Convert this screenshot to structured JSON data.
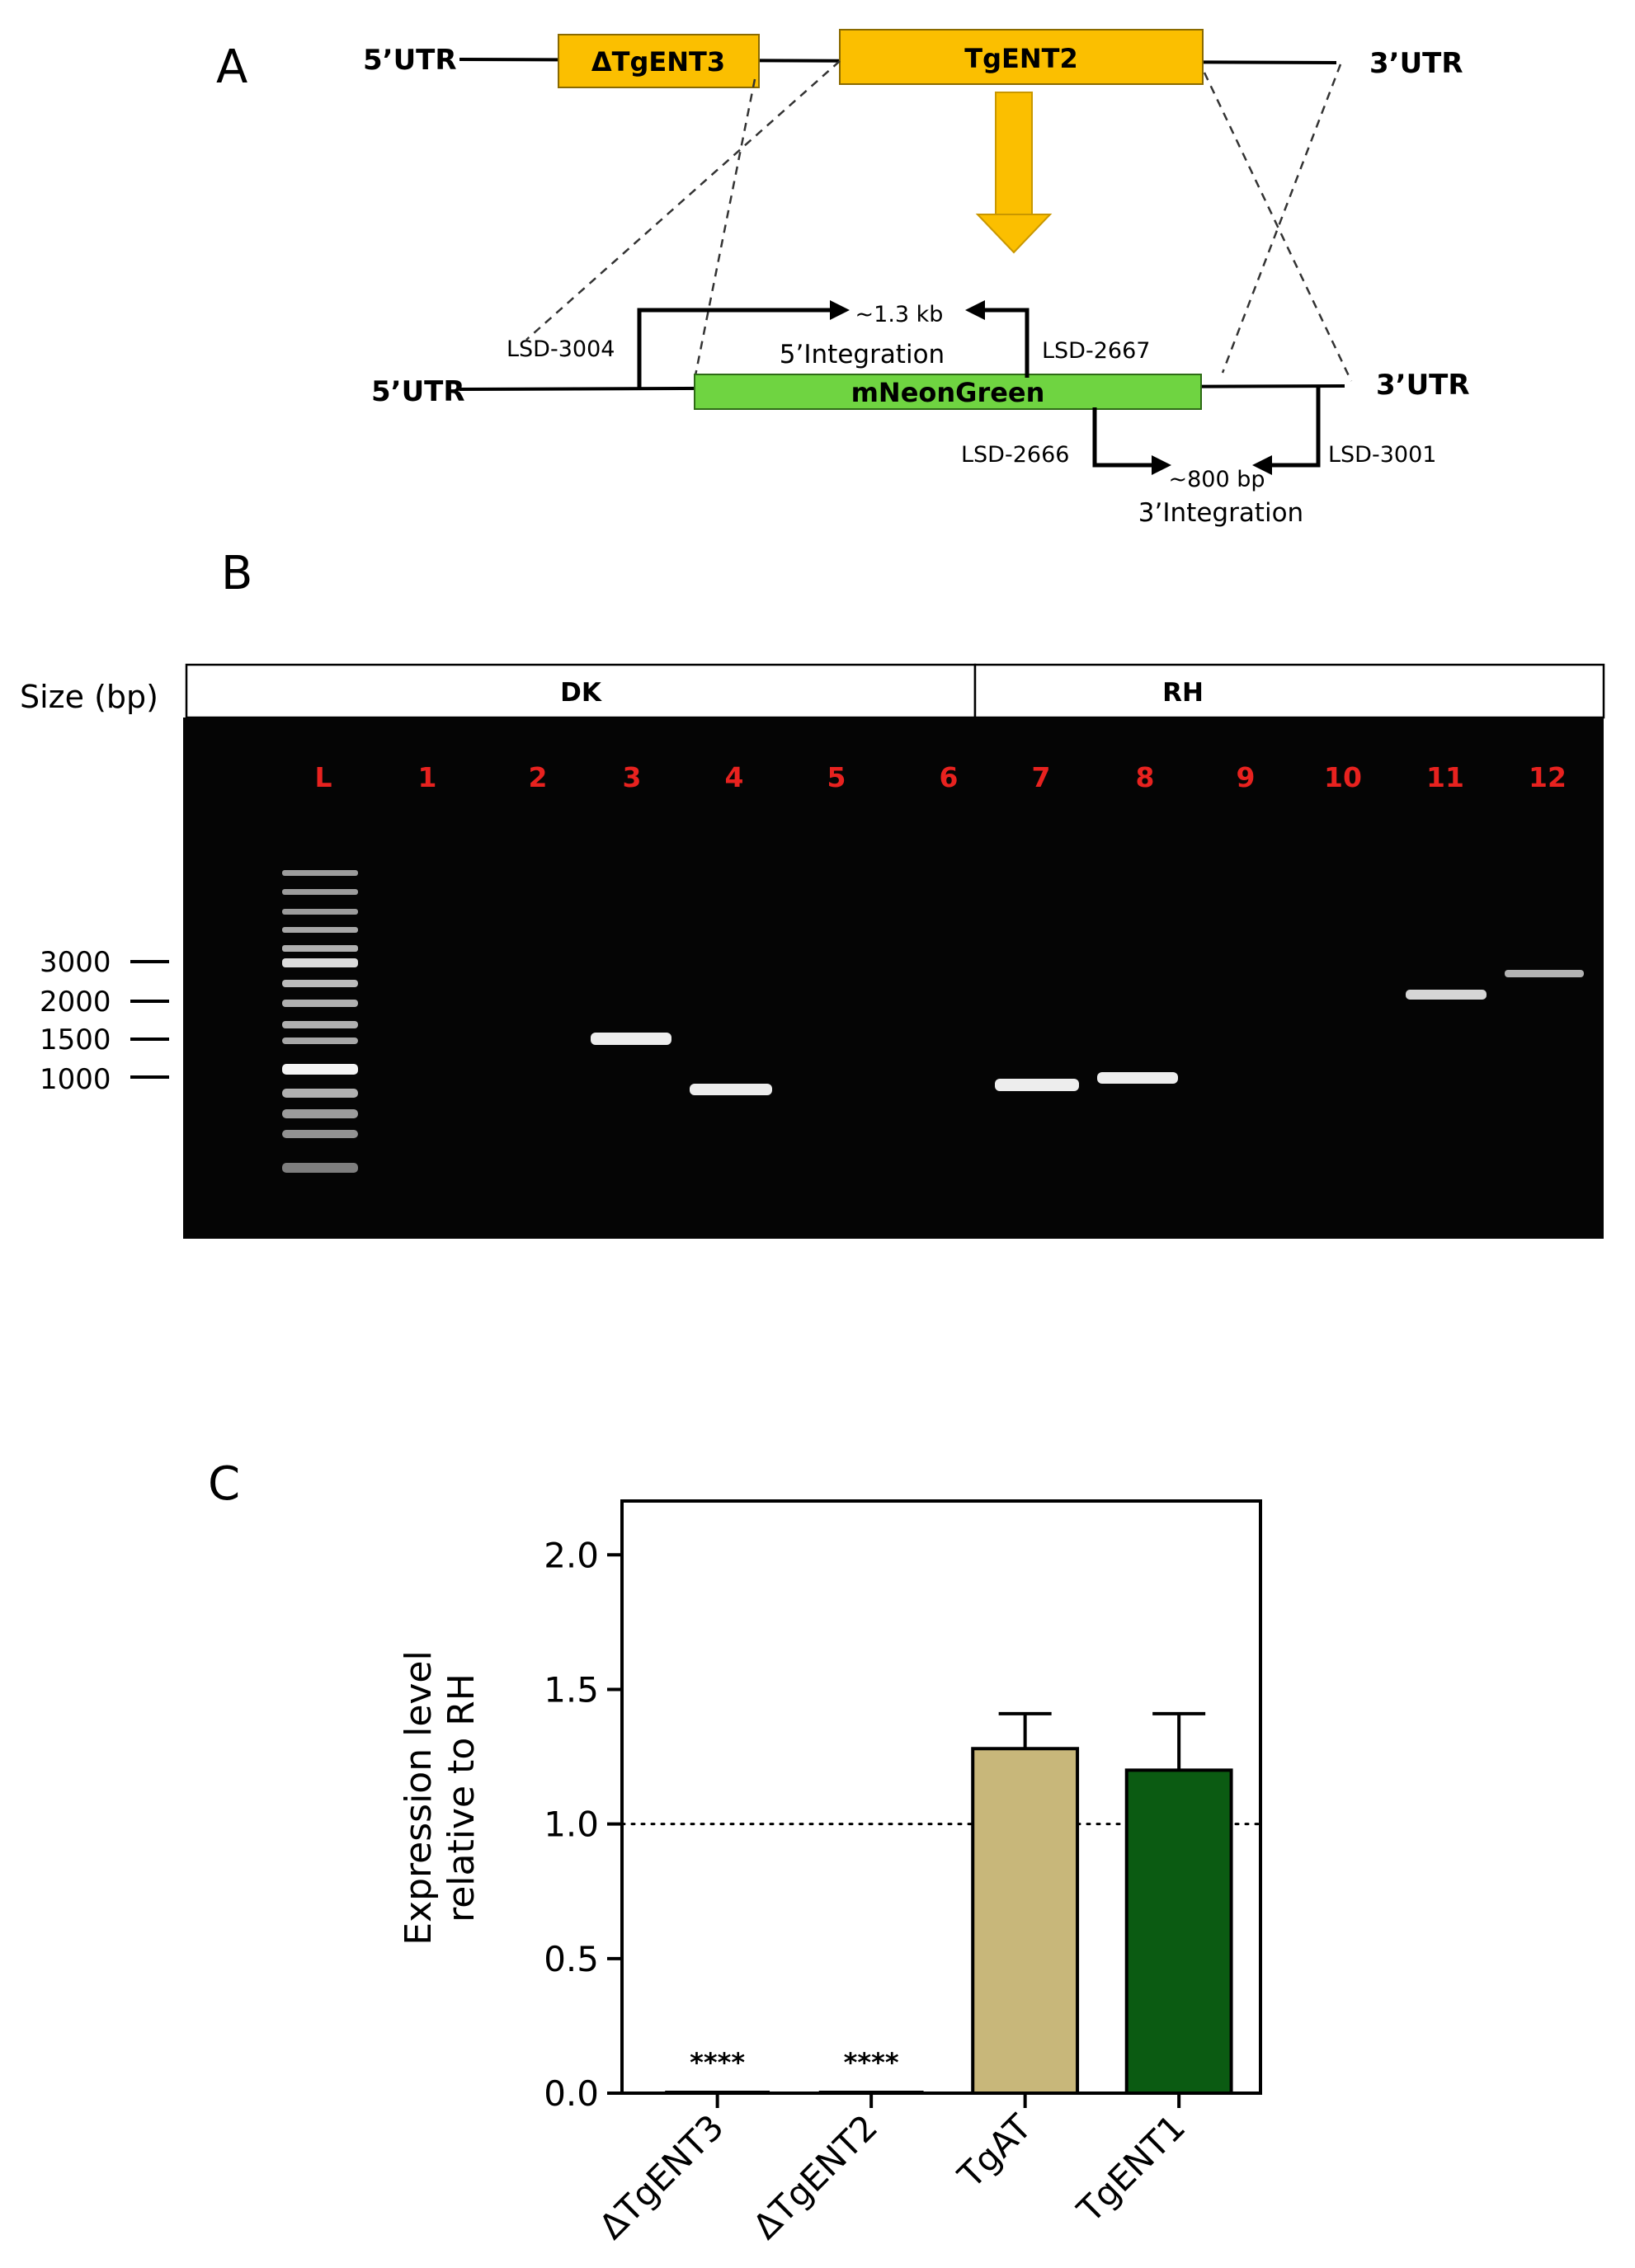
{
  "panel_labels": {
    "a": "A",
    "b": "B",
    "c": "C"
  },
  "panel_a": {
    "utr5_top": "5’UTR",
    "utr3_top": "3’UTR",
    "box_deleted": "ΔTgENT3",
    "box_target": "TgENT2",
    "utr5_bottom": "5’UTR",
    "utr3_bottom": "3’UTR",
    "insert_label": "mNeonGreen",
    "primer_5_fwd": "LSD-3004",
    "primer_5_rev": "LSD-2667",
    "product_5_size": "~1.3 kb",
    "product_5_name": "5’Integration",
    "primer_3_fwd": "LSD-2666",
    "primer_3_rev": "LSD-3001",
    "product_3_size": "~800 bp",
    "product_3_name": "3’Integration",
    "colors": {
      "box": "#fbbf00",
      "insert": "#6fd441",
      "arrow": "#fbbf00"
    }
  },
  "panel_b": {
    "size_header": "Size (bp)",
    "group_dk": "DK",
    "group_rh": "RH",
    "lanes": [
      "L",
      "1",
      "2",
      "3",
      "4",
      "5",
      "6",
      "7",
      "8",
      "9",
      "10",
      "11",
      "12"
    ],
    "size_markers": [
      "3000",
      "2000",
      "1500",
      "1000"
    ],
    "lane_color": "#e8221f"
  },
  "chart_data": {
    "type": "bar",
    "categories": [
      "ΔTgENT3",
      "ΔTgENT2",
      "TgAT",
      "TgENT1"
    ],
    "values": [
      0.0,
      0.0,
      1.28,
      1.2
    ],
    "error_upper": [
      0.0,
      0.0,
      1.41,
      1.41
    ],
    "ylabel_line1": "Expression level",
    "ylabel_line2": "relative to RH",
    "ylim": [
      0,
      2.2
    ],
    "yticks": [
      "0.0",
      "0.5",
      "1.0",
      "1.5",
      "2.0"
    ],
    "reference_line": 1.0,
    "annotations": [
      "****",
      "****",
      "",
      ""
    ],
    "colors": [
      "#ffffff",
      "#ffffff",
      "#c8b77a",
      "#0b5b12"
    ],
    "grid": false,
    "legend": "none"
  }
}
